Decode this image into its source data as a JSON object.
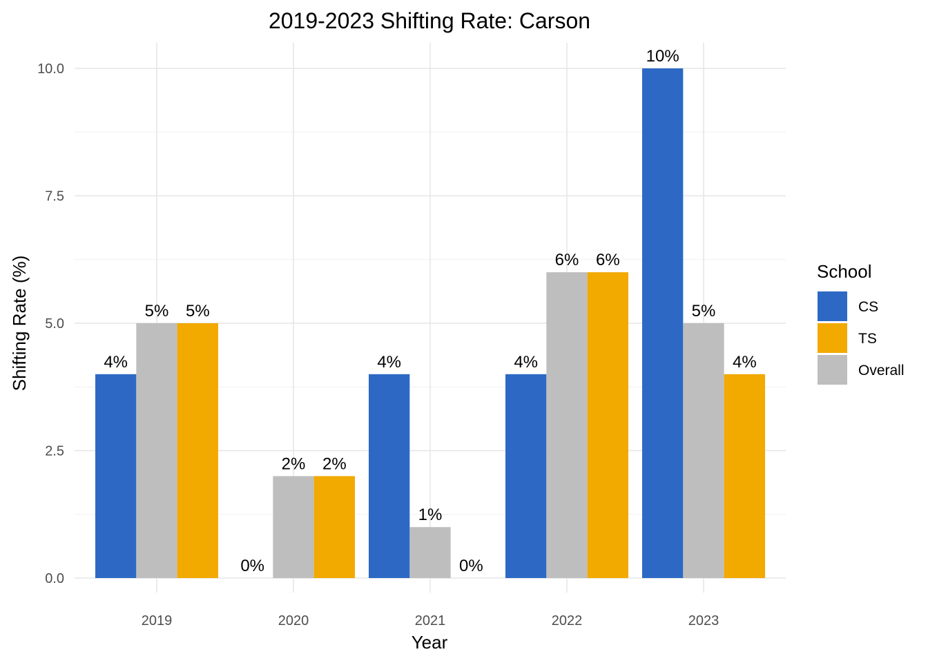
{
  "chart_data": {
    "type": "bar",
    "title": "2019-2023 Shifting Rate: Carson",
    "xlabel": "Year",
    "ylabel": "Shifting Rate (%)",
    "categories": [
      "2019",
      "2020",
      "2021",
      "2022",
      "2023"
    ],
    "ylim": [
      0,
      10
    ],
    "y_ticks": [
      "0.0",
      "2.5",
      "5.0",
      "7.5",
      "10.0"
    ],
    "y_tick_values": [
      0,
      2.5,
      5,
      7.5,
      10
    ],
    "grid": true,
    "legend": {
      "title": "School",
      "position": "right"
    },
    "series": [
      {
        "name": "CS",
        "color": "#2D69C4",
        "values": [
          4,
          0,
          4,
          4,
          10
        ],
        "labels": [
          "4%",
          "0%",
          "4%",
          "4%",
          "10%"
        ]
      },
      {
        "name": "Overall",
        "color": "#BEBEBE",
        "values": [
          5,
          2,
          1,
          6,
          5
        ],
        "labels": [
          "5%",
          "2%",
          "1%",
          "6%",
          "5%"
        ]
      },
      {
        "name": "TS",
        "color": "#F2A900",
        "values": [
          5,
          2,
          0,
          6,
          4
        ],
        "labels": [
          "5%",
          "2%",
          "0%",
          "6%",
          "4%"
        ]
      }
    ],
    "legend_order": [
      "CS",
      "TS",
      "Overall"
    ]
  }
}
